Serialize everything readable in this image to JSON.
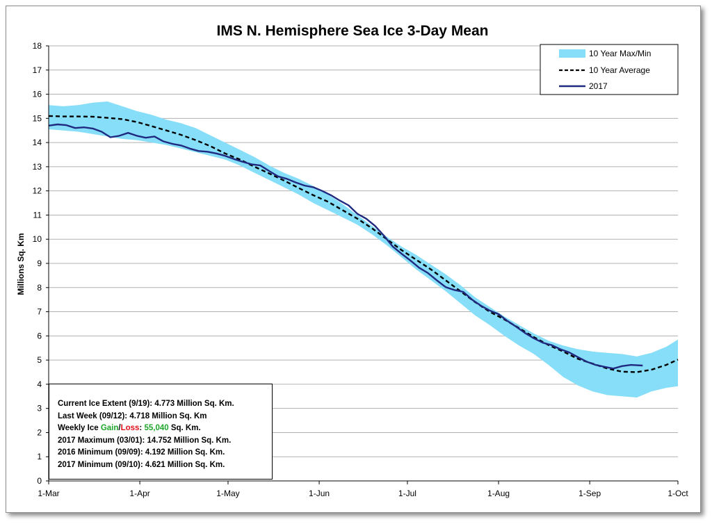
{
  "colors": {
    "band": "#87DEF8",
    "average": "#000000",
    "year2017": "#1F2A80",
    "gain": "#1FA52B",
    "loss": "#E0101A",
    "grid": "#B0B0B0"
  },
  "chart_data": {
    "type": "line",
    "title": "IMS N. Hemisphere Sea Ice 3-Day Mean",
    "xlabel": "",
    "ylabel": "Millions Sq. Km",
    "ylim": [
      0,
      18
    ],
    "yticks": [
      "0",
      "1",
      "2",
      "3",
      "4",
      "5",
      "6",
      "7",
      "8",
      "9",
      "10",
      "11",
      "12",
      "13",
      "14",
      "15",
      "16",
      "17",
      "18"
    ],
    "xlim_days": [
      0,
      214
    ],
    "xticks": [
      {
        "label": "1-Mar",
        "day": 0
      },
      {
        "label": "1-Apr",
        "day": 31
      },
      {
        "label": "1-May",
        "day": 61
      },
      {
        "label": "1-Jun",
        "day": 92
      },
      {
        "label": "1-Jul",
        "day": 122
      },
      {
        "label": "1-Aug",
        "day": 153
      },
      {
        "label": "1-Sep",
        "day": 184
      },
      {
        "label": "1-Oct",
        "day": 214
      }
    ],
    "grid": true,
    "legend_position": "top-right",
    "legend": [
      "10 Year Max/Min",
      "10 Year Average",
      "2017"
    ],
    "series": [
      {
        "name": "10 Year Max/Min",
        "kind": "band",
        "x": [
          0,
          5,
          10,
          15,
          20,
          25,
          30,
          35,
          40,
          45,
          50,
          55,
          60,
          65,
          70,
          75,
          80,
          85,
          90,
          95,
          100,
          105,
          110,
          115,
          120,
          125,
          130,
          135,
          140,
          145,
          150,
          155,
          160,
          165,
          170,
          175,
          180,
          185,
          190,
          195,
          200,
          205,
          210,
          214
        ],
        "upper": [
          15.55,
          15.5,
          15.55,
          15.65,
          15.7,
          15.5,
          15.3,
          15.15,
          14.95,
          14.8,
          14.6,
          14.3,
          14.0,
          13.7,
          13.4,
          13.05,
          12.75,
          12.5,
          12.2,
          11.85,
          11.45,
          11.0,
          10.55,
          10.1,
          9.7,
          9.35,
          8.95,
          8.55,
          8.1,
          7.6,
          7.2,
          6.8,
          6.45,
          6.1,
          5.8,
          5.6,
          5.45,
          5.35,
          5.3,
          5.25,
          5.15,
          5.3,
          5.55,
          5.85
        ],
        "lower": [
          14.55,
          14.5,
          14.45,
          14.35,
          14.25,
          14.15,
          14.1,
          14.0,
          13.9,
          13.75,
          13.6,
          13.45,
          13.3,
          13.05,
          12.75,
          12.45,
          12.15,
          11.85,
          11.5,
          11.2,
          10.9,
          10.6,
          10.2,
          9.75,
          9.25,
          8.75,
          8.3,
          7.85,
          7.35,
          6.85,
          6.45,
          6.0,
          5.6,
          5.25,
          4.8,
          4.3,
          3.95,
          3.7,
          3.55,
          3.5,
          3.45,
          3.7,
          3.85,
          3.92
        ]
      },
      {
        "name": "10 Year Average",
        "kind": "dashed",
        "x": [
          0,
          5,
          10,
          15,
          20,
          25,
          30,
          35,
          40,
          45,
          50,
          55,
          60,
          65,
          70,
          75,
          80,
          85,
          90,
          95,
          100,
          105,
          110,
          115,
          120,
          125,
          130,
          135,
          140,
          145,
          150,
          155,
          160,
          165,
          170,
          175,
          180,
          185,
          190,
          195,
          200,
          205,
          210,
          214
        ],
        "values": [
          15.1,
          15.08,
          15.08,
          15.07,
          15.02,
          14.97,
          14.85,
          14.68,
          14.5,
          14.32,
          14.1,
          13.85,
          13.55,
          13.3,
          13.0,
          12.72,
          12.43,
          12.12,
          11.82,
          11.55,
          11.2,
          10.85,
          10.45,
          10.0,
          9.55,
          9.15,
          8.75,
          8.3,
          7.85,
          7.4,
          7.0,
          6.68,
          6.32,
          5.95,
          5.62,
          5.35,
          5.05,
          4.85,
          4.65,
          4.52,
          4.5,
          4.6,
          4.8,
          5.02
        ]
      },
      {
        "name": "2017",
        "kind": "solid",
        "x": [
          0,
          3,
          6,
          9,
          12,
          15,
          18,
          21,
          24,
          27,
          30,
          33,
          36,
          39,
          42,
          45,
          48,
          51,
          54,
          57,
          60,
          63,
          66,
          69,
          72,
          75,
          78,
          81,
          84,
          87,
          90,
          93,
          96,
          99,
          102,
          105,
          108,
          111,
          114,
          117,
          120,
          123,
          126,
          129,
          132,
          135,
          138,
          141,
          144,
          147,
          150,
          153,
          156,
          159,
          162,
          165,
          168,
          171,
          174,
          177,
          180,
          183,
          186,
          189,
          192,
          195,
          198,
          202
        ],
        "values": [
          14.7,
          14.75,
          14.72,
          14.6,
          14.63,
          14.58,
          14.45,
          14.22,
          14.28,
          14.4,
          14.28,
          14.2,
          14.25,
          14.05,
          13.95,
          13.88,
          13.75,
          13.65,
          13.62,
          13.55,
          13.45,
          13.32,
          13.2,
          13.1,
          13.05,
          12.82,
          12.6,
          12.5,
          12.35,
          12.22,
          12.15,
          12.0,
          11.82,
          11.6,
          11.4,
          11.05,
          10.85,
          10.55,
          10.15,
          9.7,
          9.4,
          9.12,
          8.82,
          8.6,
          8.3,
          8.02,
          7.9,
          7.82,
          7.5,
          7.25,
          7.05,
          6.9,
          6.62,
          6.38,
          6.12,
          5.9,
          5.72,
          5.62,
          5.45,
          5.32,
          5.12,
          4.93,
          4.8,
          4.72,
          4.65,
          4.75,
          4.8,
          4.773
        ]
      }
    ]
  },
  "info": {
    "line1_label": "Current Ice Extent (9/19): ",
    "line1_value": "4.773 Million Sq. Km.",
    "line2_label": "Last Week (09/12): ",
    "line2_value": "4.718 Million Sq. Km",
    "line3_prefix": "Weekly Ice ",
    "line3_gain": "Gain",
    "line3_sep": "/",
    "line3_loss": "Loss",
    "line3_colon": ": ",
    "line3_value": "55,040",
    "line3_suffix": " Sq. Km.",
    "line4_label": "2017 Maximum (03/01): ",
    "line4_value": "14.752 Million Sq. Km.",
    "line5_label": "2016 Minimum (09/09): ",
    "line5_value": "4.192 Million Sq. Km.",
    "line6_label": "2017 Minimum (09/10): ",
    "line6_value": "4.621 Million Sq. Km."
  }
}
